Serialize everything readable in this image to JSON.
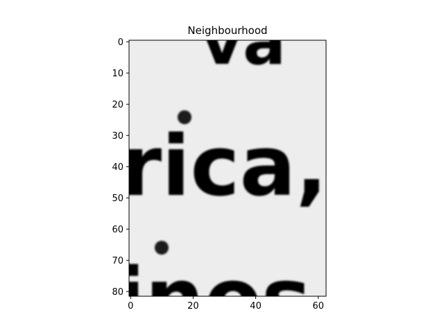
{
  "chart_data": {
    "type": "heatmap",
    "title": "Neighbourhood",
    "xlabel": "",
    "ylabel": "",
    "x_ticks": [
      0,
      20,
      40,
      60
    ],
    "y_ticks": [
      0,
      10,
      20,
      30,
      40,
      50,
      60,
      70,
      80
    ],
    "xlim": [
      -0.5,
      62.5
    ],
    "ylim": [
      81.5,
      -0.5
    ],
    "image_width": 63,
    "image_height": 82,
    "grid": false,
    "colormap": "grayscale",
    "background_color": "#ededed",
    "ink_color": "#1b1b1b",
    "content": {
      "description_words": [
        "va",
        "rica,",
        "inos"
      ]
    }
  }
}
